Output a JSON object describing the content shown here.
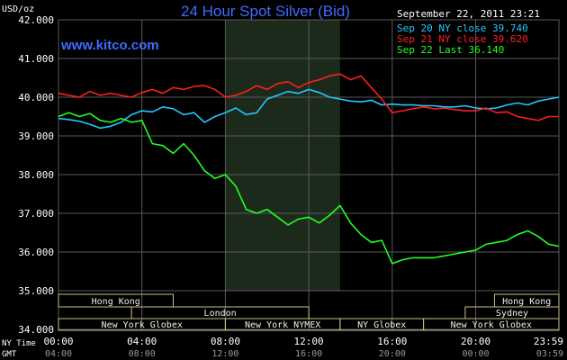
{
  "header": {
    "unit": "USD/oz",
    "title": "24 Hour Spot Silver (Bid)",
    "timestamp": "September 22, 2011 23:21",
    "site": "www.kitco.com"
  },
  "legend": [
    {
      "label": "Sep 20 NY close 39.740",
      "color": "#22c8ff"
    },
    {
      "label": "Sep 21 NY close 39.620",
      "color": "#ff1e1e"
    },
    {
      "label": "Sep 22 Last 36.140",
      "color": "#22ff22"
    }
  ],
  "sessions": {
    "row1": [
      {
        "label": "Hong Kong",
        "start": 0,
        "end": 5.5
      },
      {
        "label": "Hong Kong",
        "start": 20.9,
        "end": 23.99
      }
    ],
    "row2": [
      {
        "label": "London",
        "start": 3.5,
        "end": 12.0
      },
      {
        "label": "Sydney",
        "start": 19.5,
        "end": 23.99
      }
    ],
    "row3": [
      {
        "label": "New York Globex",
        "start": 0,
        "end": 8.0
      },
      {
        "label": "New York NYMEX",
        "start": 8.0,
        "end": 13.5
      },
      {
        "label": "NY Globex",
        "start": 13.5,
        "end": 17.5
      },
      {
        "label": "New York Globex",
        "start": 17.5,
        "end": 23.99
      }
    ]
  },
  "time_rows": {
    "ny_label": "NY Time",
    "gmt_label": "GMT",
    "ny_ticks": [
      "00:00",
      "04:00",
      "08:00",
      "12:00",
      "16:00",
      "20:00",
      "23:59"
    ],
    "gmt_ticks": [
      "04:00",
      "08:00",
      "12:00",
      "16:00",
      "20:00",
      "00:00",
      "03:59"
    ]
  },
  "colors": {
    "background": "#000000",
    "grid": "#5a5a5a",
    "highlight": "#1c2a1c",
    "title": "#3f6bff",
    "session_border": "#c8c08a",
    "session_text": "#eeeeee",
    "axis_text": "#ffffff"
  },
  "chart_data": {
    "type": "line",
    "title": "24 Hour Spot Silver (Bid)",
    "ylabel": "USD/oz",
    "xlabel": "NY Time",
    "xlim": [
      0,
      23.99
    ],
    "ylim": [
      34.0,
      42.0
    ],
    "y_ticks": [
      "34.000",
      "35.000",
      "36.000",
      "37.000",
      "38.000",
      "39.000",
      "40.000",
      "41.000",
      "42.000"
    ],
    "y_tick_values": [
      34,
      35,
      36,
      37,
      38,
      39,
      40,
      41,
      42
    ],
    "x_ticks": [
      0,
      4,
      8,
      12,
      16,
      20,
      23.99
    ],
    "highlight_range": [
      8,
      13.5
    ],
    "grid": true,
    "series": [
      {
        "name": "Sep 20 NY close 39.740",
        "color": "#22c8ff",
        "x": [
          0,
          0.5,
          1.0,
          1.5,
          2.0,
          2.5,
          3.0,
          3.5,
          4.0,
          4.5,
          5.0,
          5.5,
          6.0,
          6.5,
          7.0,
          7.5,
          8.0,
          8.5,
          9.0,
          9.5,
          10.0,
          10.5,
          11.0,
          11.5,
          12.0,
          12.5,
          13.0,
          13.5,
          14.0,
          14.5,
          15.0,
          15.5,
          16.0,
          16.5,
          17.0,
          17.5,
          18.0,
          18.5,
          19.0,
          19.5,
          20.0,
          20.5,
          21.0,
          21.5,
          22.0,
          22.5,
          23.0,
          23.5,
          23.99
        ],
        "y": [
          39.45,
          39.42,
          39.38,
          39.3,
          39.2,
          39.25,
          39.35,
          39.55,
          39.65,
          39.62,
          39.75,
          39.7,
          39.55,
          39.6,
          39.35,
          39.5,
          39.6,
          39.72,
          39.55,
          39.6,
          39.95,
          40.05,
          40.15,
          40.1,
          40.2,
          40.12,
          40.0,
          39.95,
          39.9,
          39.88,
          39.92,
          39.8,
          39.82,
          39.8,
          39.8,
          39.78,
          39.78,
          39.75,
          39.75,
          39.78,
          39.72,
          39.7,
          39.72,
          39.8,
          39.85,
          39.8,
          39.9,
          39.95,
          40.0
        ]
      },
      {
        "name": "Sep 21 NY close 39.620",
        "color": "#ff1e1e",
        "x": [
          0,
          0.5,
          1.0,
          1.5,
          2.0,
          2.5,
          3.0,
          3.5,
          4.0,
          4.5,
          5.0,
          5.5,
          6.0,
          6.5,
          7.0,
          7.5,
          8.0,
          8.5,
          9.0,
          9.5,
          10.0,
          10.5,
          11.0,
          11.5,
          12.0,
          12.5,
          13.0,
          13.5,
          14.0,
          14.5,
          15.0,
          15.5,
          16.0,
          16.5,
          17.0,
          17.5,
          18.0,
          18.5,
          19.0,
          19.5,
          20.0,
          20.5,
          21.0,
          21.5,
          22.0,
          22.5,
          23.0,
          23.5,
          23.99
        ],
        "y": [
          40.1,
          40.05,
          40.0,
          40.15,
          40.05,
          40.1,
          40.05,
          40.0,
          40.12,
          40.2,
          40.1,
          40.25,
          40.2,
          40.28,
          40.3,
          40.2,
          40.0,
          40.05,
          40.15,
          40.3,
          40.2,
          40.35,
          40.4,
          40.25,
          40.38,
          40.45,
          40.55,
          40.6,
          40.45,
          40.55,
          40.25,
          39.95,
          39.6,
          39.65,
          39.7,
          39.75,
          39.7,
          39.72,
          39.68,
          39.65,
          39.65,
          39.72,
          39.6,
          39.62,
          39.5,
          39.45,
          39.4,
          39.5,
          39.5
        ]
      },
      {
        "name": "Sep 22 Last 36.140",
        "color": "#22ff22",
        "x": [
          0,
          0.5,
          1.0,
          1.5,
          2.0,
          2.5,
          3.0,
          3.5,
          4.0,
          4.5,
          5.0,
          5.5,
          6.0,
          6.5,
          7.0,
          7.5,
          8.0,
          8.5,
          9.0,
          9.5,
          10.0,
          10.5,
          11.0,
          11.5,
          12.0,
          12.5,
          13.0,
          13.5,
          14.0,
          14.5,
          15.0,
          15.5,
          16.0,
          16.5,
          17.0,
          17.5,
          18.0,
          18.5,
          19.0,
          19.5,
          20.0,
          20.5,
          21.0,
          21.5,
          22.0,
          22.5,
          23.0,
          23.5,
          23.99
        ],
        "y": [
          39.5,
          39.6,
          39.5,
          39.58,
          39.4,
          39.35,
          39.45,
          39.35,
          39.4,
          38.8,
          38.75,
          38.55,
          38.8,
          38.5,
          38.1,
          37.9,
          38.0,
          37.7,
          37.1,
          37.0,
          37.1,
          36.9,
          36.7,
          36.85,
          36.9,
          36.75,
          36.95,
          37.2,
          36.75,
          36.45,
          36.25,
          36.3,
          35.7,
          35.8,
          35.85,
          35.85,
          35.85,
          35.9,
          35.95,
          36.0,
          36.05,
          36.2,
          36.25,
          36.3,
          36.45,
          36.55,
          36.4,
          36.2,
          36.15
        ]
      }
    ]
  }
}
